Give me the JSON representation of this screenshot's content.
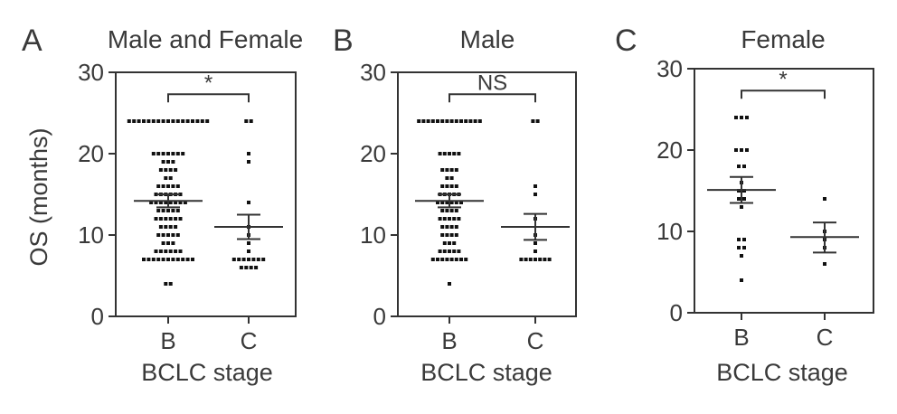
{
  "figure": {
    "ylabel": "OS (months)",
    "colors": {
      "axis": "#333333",
      "text": "#3a3a3a",
      "points": "#111111"
    }
  },
  "chart_data": [
    {
      "type": "scatter",
      "panel_label": "A",
      "title": "Male and Female",
      "xlabel": "BCLC stage",
      "ylabel": "OS (months)",
      "categories": [
        "B",
        "C"
      ],
      "ylim": [
        0,
        30
      ],
      "yticks": [
        0,
        10,
        20,
        30
      ],
      "grid": false,
      "points": {
        "B": [
          24,
          24,
          24,
          24,
          24,
          24,
          24,
          24,
          24,
          24,
          24,
          24,
          24,
          24,
          24,
          24,
          24,
          20,
          20,
          20,
          20,
          20,
          20,
          20,
          19,
          19,
          19,
          18,
          18,
          18,
          18,
          17,
          17,
          16,
          16,
          16,
          16,
          16,
          15,
          15,
          15,
          15,
          15,
          15,
          14,
          14,
          14,
          14,
          14,
          14,
          14,
          14,
          13,
          13,
          13,
          13,
          13,
          12,
          12,
          12,
          12,
          12,
          12,
          11,
          11,
          11,
          11,
          10,
          10,
          10,
          10,
          10,
          9,
          9,
          9,
          8,
          8,
          8,
          8,
          8,
          8,
          7,
          7,
          7,
          7,
          7,
          7,
          7,
          7,
          7,
          7,
          7,
          4,
          4
        ],
        "C": [
          24,
          24,
          20,
          19,
          14,
          11,
          10,
          9,
          8,
          7,
          7,
          7,
          7,
          7,
          7,
          7,
          6,
          6,
          6,
          6
        ]
      },
      "summary": {
        "B": {
          "mean": 14.2,
          "sem_low": 13.4,
          "sem_high": 15.0
        },
        "C": {
          "mean": 11.0,
          "sem_low": 9.5,
          "sem_high": 12.5
        }
      },
      "significance": "*"
    },
    {
      "type": "scatter",
      "panel_label": "B",
      "title": "Male",
      "xlabel": "BCLC stage",
      "categories": [
        "B",
        "C"
      ],
      "ylim": [
        0,
        30
      ],
      "yticks": [
        0,
        10,
        20,
        30
      ],
      "grid": false,
      "points": {
        "B": [
          24,
          24,
          24,
          24,
          24,
          24,
          24,
          24,
          24,
          24,
          24,
          24,
          24,
          24,
          20,
          20,
          20,
          20,
          20,
          18,
          18,
          18,
          18,
          17,
          17,
          16,
          16,
          16,
          16,
          15,
          15,
          15,
          15,
          15,
          14,
          14,
          14,
          14,
          14,
          14,
          13,
          13,
          13,
          13,
          12,
          12,
          12,
          12,
          12,
          11,
          11,
          11,
          11,
          10,
          10,
          10,
          10,
          9,
          9,
          9,
          8,
          8,
          8,
          8,
          8,
          7,
          7,
          7,
          7,
          7,
          7,
          7,
          7,
          4
        ],
        "C": [
          24,
          24,
          16,
          15,
          12,
          10,
          9,
          8,
          7,
          7,
          7,
          7,
          7,
          7,
          7
        ]
      },
      "summary": {
        "B": {
          "mean": 14.2,
          "sem_low": 13.4,
          "sem_high": 15.0
        },
        "C": {
          "mean": 11.0,
          "sem_low": 9.4,
          "sem_high": 12.6
        }
      },
      "significance": "NS"
    },
    {
      "type": "scatter",
      "panel_label": "C",
      "title": "Female",
      "xlabel": "BCLC stage",
      "categories": [
        "B",
        "C"
      ],
      "ylim": [
        0,
        30
      ],
      "yticks": [
        0,
        10,
        20,
        30
      ],
      "grid": false,
      "points": {
        "B": [
          24,
          24,
          24,
          20,
          20,
          20,
          18,
          18,
          16,
          15,
          15,
          14,
          14,
          13,
          9,
          9,
          8,
          8,
          7,
          4
        ],
        "C": [
          14,
          10,
          9,
          8,
          6
        ]
      },
      "summary": {
        "B": {
          "mean": 15.1,
          "sem_low": 13.5,
          "sem_high": 16.7
        },
        "C": {
          "mean": 9.3,
          "sem_low": 7.4,
          "sem_high": 11.1
        }
      },
      "significance": "*"
    }
  ]
}
